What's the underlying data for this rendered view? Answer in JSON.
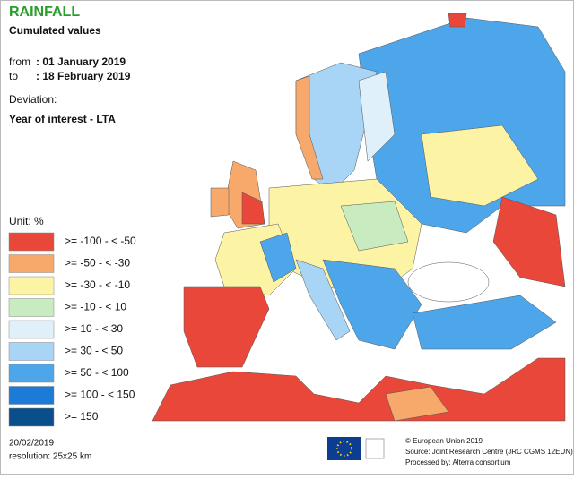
{
  "header": {
    "title": "RAINFALL",
    "subtitle": "Cumulated values",
    "from_label": "from",
    "from_value": ": 01 January 2019",
    "to_label": "to",
    "to_value": ": 18 February 2019",
    "deviation_label": "Deviation:",
    "deviation_value": "Year of interest - LTA"
  },
  "legend": {
    "unit": "Unit: %",
    "items": [
      {
        "label": ">= -100 - < -50",
        "color": "#e8473a"
      },
      {
        "label": ">= -50 - < -30",
        "color": "#f6a96b"
      },
      {
        "label": ">= -30 - < -10",
        "color": "#fdf3a5"
      },
      {
        "label": ">= -10 - < 10",
        "color": "#c9ebc0"
      },
      {
        "label": ">= 10 - < 30",
        "color": "#dff0fb"
      },
      {
        "label": ">= 30 - < 50",
        "color": "#a8d5f5"
      },
      {
        "label": ">= 50 - < 100",
        "color": "#4da6ea"
      },
      {
        "label": ">= 100 - < 150",
        "color": "#1b7bd6"
      },
      {
        "label": ">= 150",
        "color": "#0b4f8a"
      }
    ]
  },
  "footer": {
    "date": "20/02/2019",
    "resolution": "resolution: 25x25 km",
    "copyright": "© European Union 2019",
    "source": "Source: Joint Research Centre (JRC CGMS 12EUN)",
    "processed": "Processed by: Alterra consortium"
  }
}
